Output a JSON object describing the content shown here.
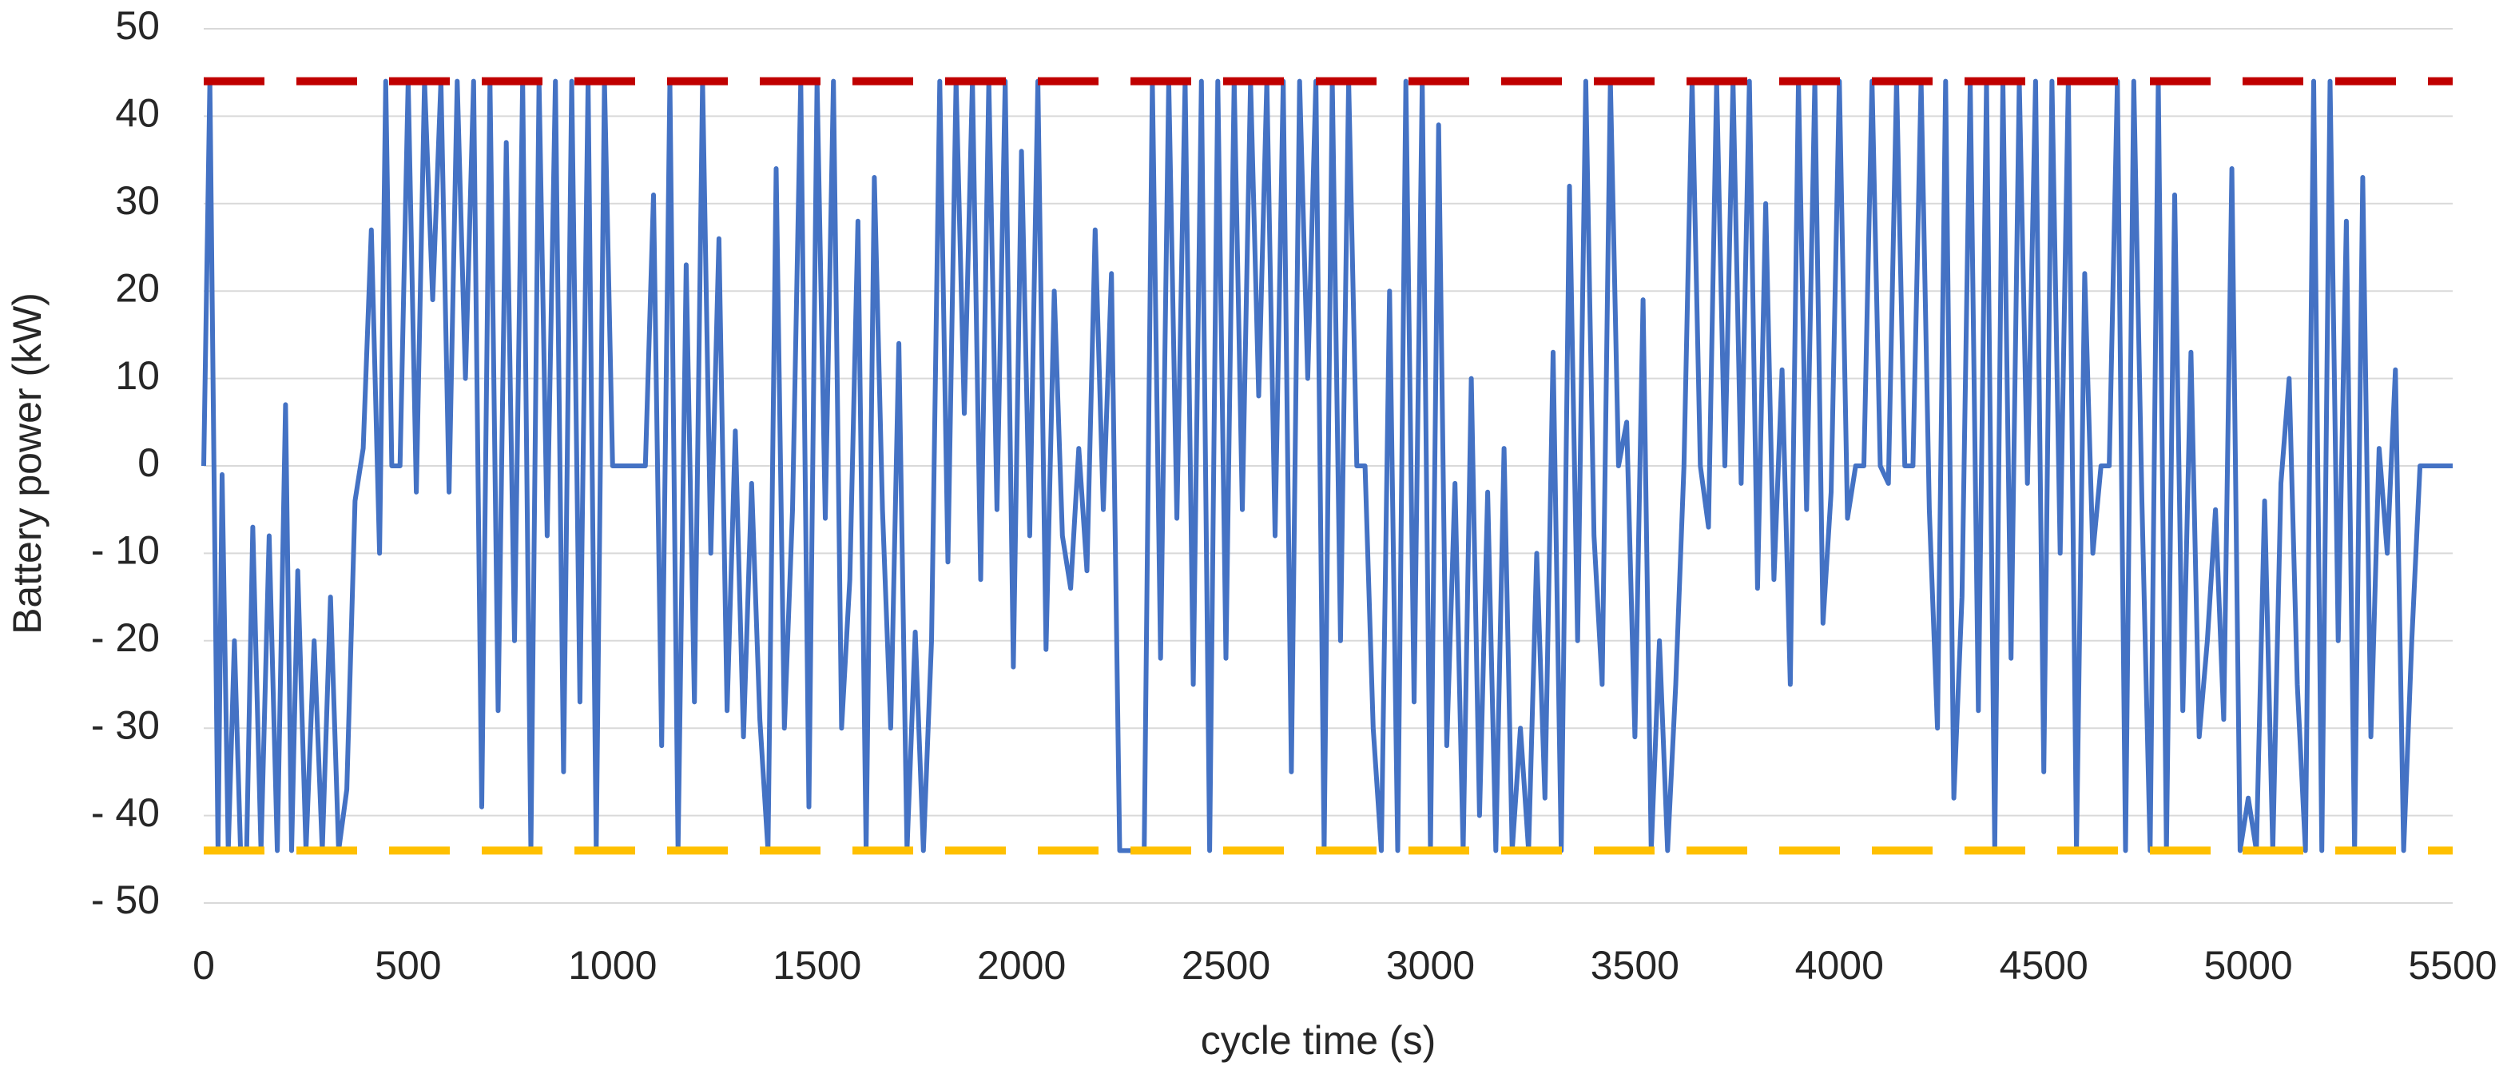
{
  "chart_data": {
    "type": "line",
    "xlabel": "cycle time (s)",
    "ylabel": "Battery power (kW)",
    "xlim": [
      0,
      5500
    ],
    "xticks": [
      0,
      500,
      1000,
      1500,
      2000,
      2500,
      3000,
      3500,
      4000,
      4500,
      5000,
      5500
    ],
    "ylim": [
      -50,
      50
    ],
    "yticks": [
      {
        "value": -50,
        "label": "- 50"
      },
      {
        "value": -40,
        "label": "- 40"
      },
      {
        "value": -30,
        "label": "- 30"
      },
      {
        "value": -20,
        "label": "- 20"
      },
      {
        "value": -10,
        "label": "- 10"
      },
      0,
      10,
      20,
      30,
      40,
      50
    ],
    "grid": true,
    "x": [
      0,
      15,
      25,
      35,
      45,
      60,
      75,
      90,
      105,
      120,
      140,
      160,
      180,
      200,
      215,
      230,
      250,
      270,
      290,
      310,
      330,
      350,
      370,
      390,
      410,
      430,
      445,
      460,
      480,
      500,
      520,
      540,
      560,
      580,
      600,
      620,
      640,
      660,
      680,
      700,
      720,
      740,
      760,
      780,
      800,
      820,
      840,
      860,
      880,
      900,
      920,
      940,
      960,
      980,
      1000,
      1040,
      1080,
      1100,
      1120,
      1140,
      1160,
      1180,
      1200,
      1220,
      1240,
      1260,
      1280,
      1300,
      1320,
      1340,
      1360,
      1380,
      1400,
      1420,
      1440,
      1460,
      1480,
      1500,
      1520,
      1540,
      1560,
      1580,
      1600,
      1620,
      1640,
      1660,
      1680,
      1700,
      1720,
      1740,
      1760,
      1780,
      1800,
      1820,
      1840,
      1860,
      1880,
      1900,
      1920,
      1940,
      1960,
      1980,
      2000,
      2020,
      2040,
      2060,
      2080,
      2100,
      2120,
      2140,
      2160,
      2180,
      2200,
      2220,
      2240,
      2260,
      2300,
      2320,
      2340,
      2360,
      2380,
      2400,
      2420,
      2440,
      2460,
      2480,
      2500,
      2520,
      2540,
      2560,
      2580,
      2600,
      2620,
      2640,
      2660,
      2680,
      2700,
      2720,
      2740,
      2760,
      2780,
      2800,
      2820,
      2840,
      2860,
      2880,
      2900,
      2920,
      2940,
      2960,
      2980,
      3000,
      3020,
      3040,
      3060,
      3080,
      3100,
      3120,
      3140,
      3160,
      3180,
      3200,
      3220,
      3240,
      3260,
      3280,
      3300,
      3320,
      3340,
      3360,
      3380,
      3400,
      3420,
      3440,
      3460,
      3480,
      3500,
      3520,
      3540,
      3560,
      3580,
      3600,
      3620,
      3640,
      3660,
      3680,
      3700,
      3720,
      3740,
      3760,
      3780,
      3800,
      3820,
      3840,
      3860,
      3880,
      3900,
      3920,
      3940,
      3960,
      3980,
      4000,
      4020,
      4040,
      4060,
      4080,
      4100,
      4120,
      4140,
      4160,
      4180,
      4200,
      4220,
      4240,
      4260,
      4280,
      4300,
      4320,
      4340,
      4360,
      4380,
      4400,
      4420,
      4440,
      4460,
      4480,
      4500,
      4520,
      4540,
      4560,
      4580,
      4600,
      4620,
      4640,
      4660,
      4680,
      4700,
      4720,
      4740,
      4760,
      4780,
      4800,
      4820,
      4840,
      4860,
      4880,
      4900,
      4920,
      4940,
      4960,
      4980,
      5000,
      5020,
      5040,
      5060,
      5080,
      5100,
      5120,
      5140,
      5160,
      5180,
      5200,
      5220,
      5240,
      5260,
      5280,
      5300,
      5320,
      5340,
      5360,
      5380,
      5400,
      5420,
      5500
    ],
    "series": [
      {
        "color": "#4472c4",
        "dashed": false,
        "values": [
          0,
          44,
          0,
          -44,
          -1,
          -44,
          -20,
          -44,
          -44,
          -7,
          -44,
          -8,
          -44,
          7,
          -44,
          -12,
          -44,
          -20,
          -44,
          -15,
          -44,
          -37,
          -4,
          2,
          27,
          -10,
          44,
          0,
          0,
          44,
          -3,
          44,
          19,
          44,
          -3,
          44,
          10,
          44,
          -39,
          44,
          -28,
          37,
          -20,
          44,
          -44,
          44,
          -8,
          44,
          -35,
          44,
          -27,
          44,
          -44,
          44,
          0,
          0,
          0,
          31,
          -32,
          44,
          -44,
          23,
          -27,
          44,
          -10,
          26,
          -28,
          4,
          -31,
          -2,
          -29,
          -44,
          34,
          -30,
          -5,
          44,
          -39,
          44,
          -6,
          44,
          -30,
          -13,
          28,
          -44,
          33,
          -5,
          -30,
          14,
          -44,
          -19,
          -44,
          -20,
          44,
          -11,
          44,
          6,
          44,
          -13,
          44,
          -5,
          44,
          -23,
          36,
          -8,
          44,
          -21,
          20,
          -8,
          -14,
          2,
          -12,
          27,
          -5,
          22,
          -44,
          -44,
          -44,
          44,
          -22,
          44,
          -6,
          44,
          -25,
          44,
          -44,
          44,
          -22,
          44,
          -5,
          44,
          8,
          44,
          -8,
          44,
          -35,
          44,
          10,
          44,
          -44,
          44,
          -20,
          44,
          0,
          0,
          -30,
          -44,
          20,
          -44,
          44,
          -27,
          44,
          -44,
          39,
          -32,
          -2,
          -44,
          10,
          -40,
          -3,
          -44,
          2,
          -44,
          -30,
          -44,
          -10,
          -38,
          13,
          -44,
          32,
          -20,
          44,
          -8,
          -25,
          44,
          0,
          5,
          -31,
          19,
          -44,
          -20,
          -44,
          -25,
          0,
          44,
          0,
          -7,
          44,
          0,
          44,
          -2,
          44,
          -14,
          30,
          -13,
          11,
          -25,
          44,
          -5,
          44,
          -18,
          -3,
          44,
          -6,
          0,
          0,
          44,
          0,
          -2,
          44,
          0,
          0,
          44,
          -5,
          -30,
          44,
          -38,
          -15,
          44,
          -28,
          44,
          -44,
          44,
          -22,
          44,
          -2,
          44,
          -35,
          44,
          -10,
          44,
          -44,
          22,
          -10,
          0,
          0,
          44,
          -44,
          44,
          -4,
          -44,
          44,
          -44,
          31,
          -28,
          13,
          -31,
          -20,
          -5,
          -29,
          34,
          -44,
          -38,
          -44,
          -4,
          -44,
          -2,
          10,
          -25,
          -44,
          44,
          -44,
          44,
          -20,
          28,
          -44,
          33,
          -31,
          2,
          -10,
          11,
          -44,
          -20,
          0,
          0
        ]
      },
      {
        "color": "#c00000",
        "dashed": true,
        "x": [
          0,
          5500
        ],
        "values": [
          44,
          44
        ]
      },
      {
        "color": "#ffc000",
        "dashed": true,
        "x": [
          0,
          5500
        ],
        "values": [
          -44,
          -44
        ]
      }
    ]
  }
}
